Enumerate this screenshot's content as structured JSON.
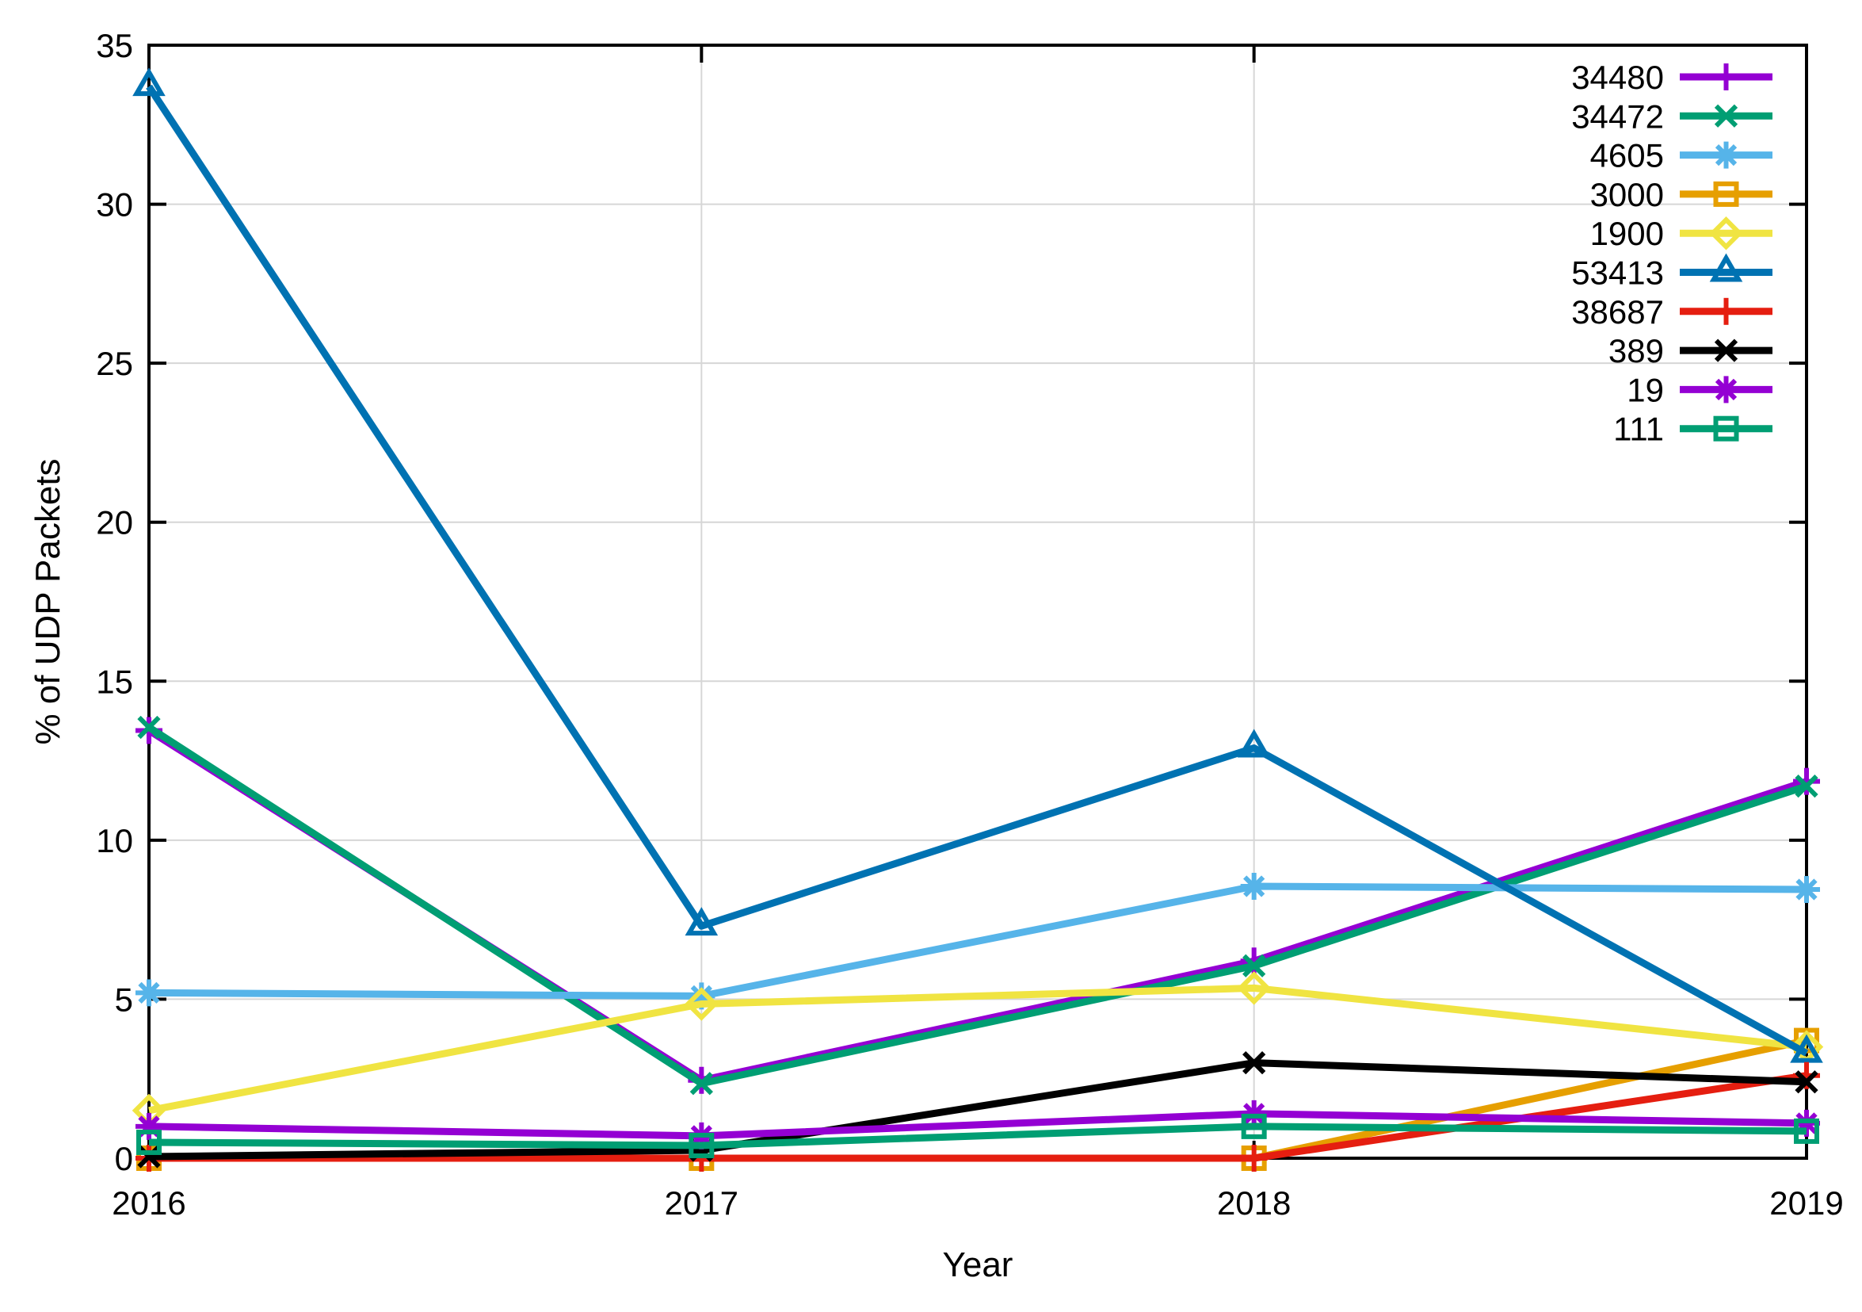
{
  "chart_data": {
    "type": "line",
    "title": "",
    "xlabel": "Year",
    "ylabel": "% of UDP Packets",
    "x": [
      2016,
      2017,
      2018,
      2019
    ],
    "x_tick_labels": [
      "2016",
      "2017",
      "2018",
      "2019"
    ],
    "y_tick_labels": [
      "0",
      "5",
      "10",
      "15",
      "20",
      "25",
      "30",
      "35"
    ],
    "yticks": [
      0,
      5,
      10,
      15,
      20,
      25,
      30,
      35
    ],
    "ylim": [
      0,
      35
    ],
    "xlim": [
      2016,
      2019
    ],
    "grid": "on",
    "grid_color": "#d6d6d6",
    "axis_color": "#000000",
    "legend_position": "top-right-inside",
    "legend_border": "none",
    "series": [
      {
        "name": "34480",
        "color": "#9400d3",
        "marker": "plus",
        "values": [
          13.45,
          2.45,
          6.2,
          11.85
        ]
      },
      {
        "name": "34472",
        "color": "#009e73",
        "marker": "cross",
        "values": [
          13.55,
          2.35,
          6.05,
          11.7
        ]
      },
      {
        "name": "4605",
        "color": "#56b4e9",
        "marker": "asterisk",
        "values": [
          5.2,
          5.1,
          8.55,
          8.45
        ]
      },
      {
        "name": "3000",
        "color": "#e69f00",
        "marker": "square",
        "values": [
          0.0,
          0.0,
          0.0,
          3.7
        ]
      },
      {
        "name": "1900",
        "color": "#f0e442",
        "marker": "diamond",
        "values": [
          1.5,
          4.85,
          5.35,
          3.5
        ]
      },
      {
        "name": "53413",
        "color": "#0072b2",
        "marker": "triangle",
        "values": [
          33.7,
          7.3,
          12.9,
          3.3
        ]
      },
      {
        "name": "38687",
        "color": "#e51e10",
        "marker": "plus",
        "values": [
          0.0,
          0.0,
          0.0,
          2.6
        ]
      },
      {
        "name": "389",
        "color": "#000000",
        "marker": "cross",
        "values": [
          0.05,
          0.25,
          3.0,
          2.4
        ]
      },
      {
        "name": "19",
        "color": "#9400d3",
        "marker": "asterisk",
        "values": [
          1.0,
          0.7,
          1.4,
          1.1
        ]
      },
      {
        "name": "111",
        "color": "#009e73",
        "marker": "square",
        "values": [
          0.5,
          0.4,
          1.0,
          0.85
        ]
      }
    ]
  }
}
